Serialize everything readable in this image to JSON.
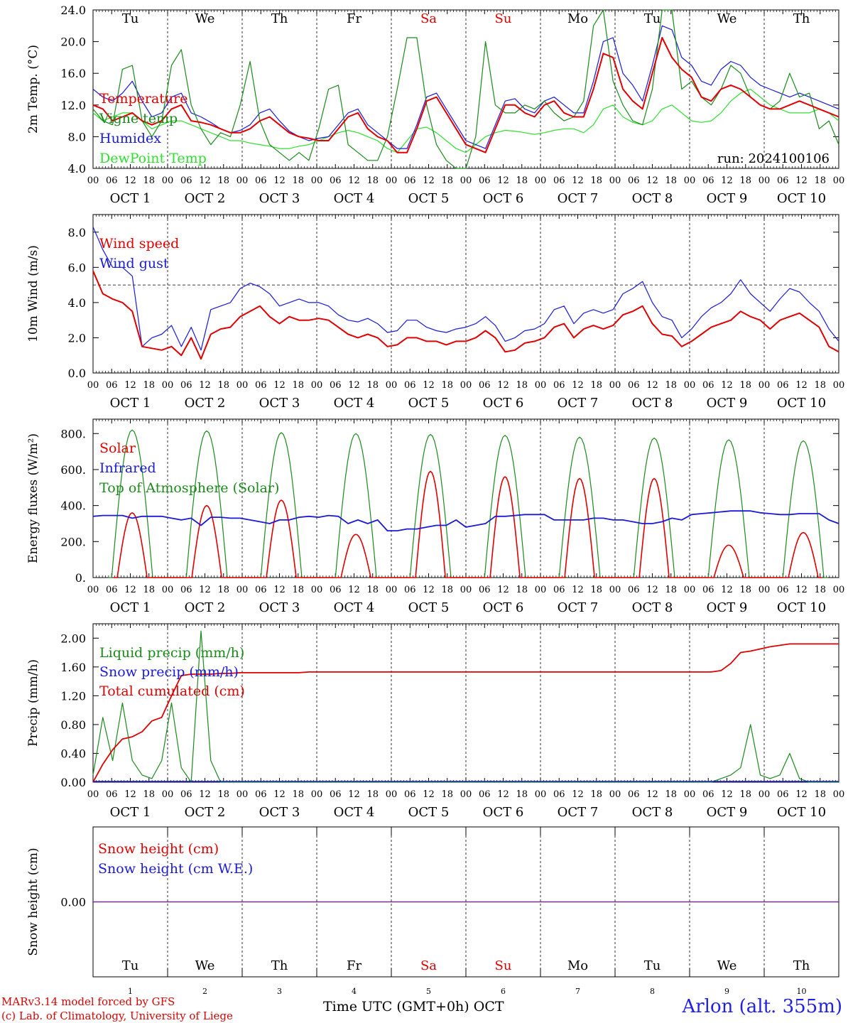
{
  "run_label": "run: 2024100106",
  "station": "Arlon (alt. 355m)",
  "credits": [
    "MARv3.14 model forced by GFS",
    "(c) Lab. of Climatology, University of Liege"
  ],
  "x_axis_title": "Time UTC (GMT+0h)",
  "month_label": "OCT",
  "day_letters": [
    "Tu",
    "We",
    "Th",
    "Fr",
    "Sa",
    "Su",
    "Mo",
    "Tu",
    "We",
    "Th"
  ],
  "day_numbers": [
    "1",
    "2",
    "3",
    "4",
    "5",
    "6",
    "7",
    "8",
    "9",
    "10"
  ],
  "date_labels": [
    "OCT  1",
    "OCT  2",
    "OCT  3",
    "OCT  4",
    "OCT  5",
    "OCT  6",
    "OCT  7",
    "OCT  8",
    "OCT  9",
    "OCT 10"
  ],
  "hour_labels": [
    "00",
    "06",
    "12",
    "18"
  ],
  "colors": {
    "weekday": "#000000",
    "weekend": "#e00000",
    "red": "#e00000",
    "green": "#1a8a1a",
    "blue": "#1a1ad8",
    "lightgreen": "#30e030",
    "purple": "#7a2a9a"
  },
  "chart_data": [
    {
      "type": "line",
      "ylabel": "2m Temp. (°C)",
      "ylim": [
        4.0,
        24.0
      ],
      "yticks": [
        "4.0",
        "8.0",
        "12.0",
        "16.0",
        "20.0",
        "24.0"
      ],
      "x_start": "2024-10-01T00:00Z",
      "x_step_hours": 6,
      "series": [
        {
          "name": "Temperature",
          "color": "red",
          "values": [
            12.0,
            11.5,
            10.0,
            10.5,
            11.0,
            10.0,
            9.5,
            10.0,
            11.5,
            12.0,
            10.0,
            9.8,
            9.5,
            9.0,
            8.5,
            8.5,
            9.0,
            10.0,
            10.5,
            9.5,
            8.5,
            8.0,
            7.8,
            7.5,
            7.5,
            9.0,
            10.5,
            11.0,
            9.0,
            8.0,
            7.5,
            6.0,
            6.0,
            9.0,
            12.5,
            13.0,
            11.0,
            9.0,
            7.0,
            6.5,
            6.0,
            9.0,
            12.0,
            12.0,
            11.0,
            10.5,
            12.0,
            12.5,
            11.0,
            10.5,
            10.5,
            14.0,
            18.5,
            18.0,
            14.0,
            12.5,
            11.5,
            16.0,
            20.5,
            18.0,
            16.5,
            15.5,
            13.0,
            12.5,
            14.0,
            14.5,
            14.0,
            13.0,
            12.0,
            11.5,
            11.5,
            12.0,
            12.5,
            12.0,
            11.5,
            11.0,
            10.5
          ]
        },
        {
          "name": "Vigne temp",
          "color": "green",
          "values": [
            11.5,
            10.0,
            9.5,
            16.5,
            17.0,
            10.0,
            8.0,
            10.0,
            17.0,
            19.0,
            12.0,
            9.0,
            7.0,
            8.5,
            8.0,
            12.0,
            17.5,
            10.0,
            7.0,
            6.0,
            5.0,
            6.0,
            5.0,
            9.0,
            14.0,
            14.5,
            7.0,
            6.0,
            5.0,
            5.0,
            8.0,
            14.0,
            20.5,
            20.5,
            12.0,
            7.0,
            5.0,
            4.0,
            4.0,
            8.0,
            20.0,
            12.0,
            11.0,
            11.0,
            12.0,
            11.5,
            12.5,
            11.0,
            10.0,
            10.5,
            12.5,
            22.0,
            25.0,
            15.0,
            12.0,
            10.0,
            9.5,
            14.0,
            25.0,
            24.0,
            14.0,
            15.0,
            13.0,
            12.0,
            14.0,
            17.0,
            16.0,
            13.0,
            12.0,
            11.5,
            12.5,
            16.0,
            13.0,
            13.5,
            9.0,
            10.0,
            7.0
          ]
        },
        {
          "name": "Humidex",
          "color": "blue",
          "values": [
            14.0,
            13.0,
            12.5,
            13.5,
            15.0,
            12.5,
            10.5,
            11.0,
            13.0,
            13.5,
            11.0,
            10.5,
            9.8,
            9.0,
            8.5,
            8.8,
            9.5,
            11.0,
            11.5,
            10.0,
            8.7,
            8.0,
            7.5,
            7.8,
            8.0,
            9.5,
            11.0,
            11.5,
            9.5,
            8.5,
            7.5,
            6.5,
            6.5,
            9.5,
            13.0,
            13.5,
            11.5,
            9.5,
            7.5,
            7.0,
            6.5,
            9.5,
            12.5,
            12.8,
            11.5,
            11.0,
            12.5,
            13.0,
            12.0,
            11.0,
            11.0,
            15.0,
            20.0,
            20.5,
            16.0,
            14.5,
            12.5,
            17.0,
            22.0,
            21.5,
            18.0,
            17.0,
            15.0,
            14.5,
            16.5,
            17.5,
            17.0,
            15.5,
            14.5,
            14.0,
            13.5,
            13.0,
            13.5,
            13.0,
            12.5,
            12.0,
            11.5
          ]
        },
        {
          "name": "DewPoint Temp",
          "color": "lightgreen",
          "values": [
            11.0,
            10.0,
            10.5,
            11.0,
            11.0,
            10.0,
            9.0,
            9.5,
            10.0,
            10.0,
            9.5,
            9.0,
            8.5,
            8.0,
            7.5,
            7.5,
            7.2,
            7.0,
            6.8,
            6.5,
            6.5,
            6.8,
            7.0,
            7.5,
            8.0,
            8.5,
            8.8,
            8.5,
            8.0,
            7.5,
            6.5,
            6.0,
            7.5,
            9.0,
            9.2,
            8.5,
            7.5,
            6.5,
            6.0,
            7.0,
            8.0,
            8.5,
            8.8,
            8.7,
            8.5,
            8.3,
            8.5,
            8.8,
            9.0,
            9.0,
            8.5,
            9.5,
            11.5,
            12.0,
            10.5,
            9.8,
            9.5,
            10.0,
            11.5,
            12.0,
            11.0,
            10.0,
            9.8,
            10.0,
            11.0,
            12.5,
            13.5,
            14.0,
            13.0,
            12.0,
            11.5,
            11.0,
            11.0,
            11.0,
            11.5,
            11.0,
            10.0
          ]
        }
      ]
    },
    {
      "type": "line",
      "ylabel": "10m Wind (m/s)",
      "ylim": [
        0.0,
        9.0
      ],
      "yticks": [
        "0.0",
        "2.0",
        "4.0",
        "6.0",
        "8.0"
      ],
      "ref_line": 5.0,
      "x_start": "2024-10-01T00:00Z",
      "x_step_hours": 6,
      "series": [
        {
          "name": "Wind speed",
          "color": "red",
          "values": [
            5.8,
            4.5,
            4.2,
            4.0,
            3.5,
            1.5,
            1.4,
            1.3,
            1.5,
            1.0,
            2.0,
            0.8,
            2.2,
            2.5,
            2.6,
            3.2,
            3.5,
            3.8,
            3.2,
            2.8,
            3.2,
            3.0,
            3.0,
            3.1,
            3.0,
            2.6,
            2.2,
            2.0,
            2.2,
            2.0,
            1.5,
            1.6,
            2.0,
            2.0,
            1.8,
            1.8,
            1.6,
            1.8,
            1.8,
            2.0,
            2.4,
            2.0,
            1.2,
            1.3,
            1.7,
            1.8,
            2.0,
            2.6,
            2.8,
            2.0,
            2.5,
            2.7,
            2.5,
            2.7,
            3.3,
            3.5,
            3.8,
            2.8,
            2.2,
            2.1,
            1.5,
            1.8,
            2.2,
            2.6,
            2.8,
            3.0,
            3.5,
            3.2,
            3.0,
            2.5,
            3.0,
            3.2,
            3.4,
            3.0,
            2.6,
            1.5,
            1.2
          ]
        },
        {
          "name": "Wind gust",
          "color": "blue",
          "values": [
            8.3,
            7.0,
            6.0,
            6.0,
            5.5,
            1.5,
            2.0,
            2.2,
            2.7,
            1.5,
            2.6,
            1.3,
            3.6,
            3.8,
            4.0,
            4.8,
            5.1,
            4.9,
            4.5,
            3.8,
            4.0,
            4.2,
            4.0,
            4.0,
            3.8,
            3.3,
            3.0,
            2.9,
            3.1,
            2.8,
            2.3,
            2.4,
            3.0,
            3.0,
            2.6,
            2.4,
            2.3,
            2.5,
            2.6,
            2.8,
            3.2,
            2.7,
            1.8,
            2.0,
            2.4,
            2.5,
            2.8,
            3.6,
            3.8,
            2.8,
            3.4,
            3.6,
            3.4,
            3.6,
            4.5,
            4.8,
            5.2,
            4.0,
            3.2,
            3.0,
            2.0,
            2.5,
            3.2,
            3.7,
            4.0,
            4.5,
            5.3,
            4.5,
            4.0,
            3.5,
            4.2,
            4.8,
            4.6,
            4.0,
            3.5,
            2.5,
            1.8
          ]
        }
      ]
    },
    {
      "type": "line",
      "ylabel": "Energy fluxes (W/m²)",
      "ylim": [
        0,
        880
      ],
      "yticks": [
        "0.",
        "200.",
        "400.",
        "600.",
        "800."
      ],
      "x_start": "2024-10-01T00:00Z",
      "x_step_hours": 6,
      "series": [
        {
          "name": "Solar",
          "color": "red",
          "peak_values": [
            360,
            400,
            430,
            240,
            590,
            560,
            550,
            550,
            180,
            250
          ]
        },
        {
          "name": "Infrared",
          "color": "blue",
          "values": [
            340,
            345,
            345,
            345,
            330,
            340,
            340,
            340,
            330,
            320,
            330,
            290,
            335,
            335,
            330,
            330,
            320,
            310,
            300,
            320,
            320,
            335,
            340,
            335,
            345,
            340,
            300,
            320,
            300,
            320,
            260,
            260,
            270,
            270,
            280,
            290,
            290,
            320,
            280,
            290,
            300,
            340,
            340,
            345,
            350,
            350,
            350,
            320,
            320,
            320,
            320,
            330,
            330,
            320,
            320,
            310,
            300,
            300,
            310,
            330,
            320,
            350,
            355,
            360,
            365,
            370,
            370,
            370,
            360,
            355,
            350,
            350,
            355,
            355,
            355,
            320,
            300
          ]
        },
        {
          "name": "Top of Atmosphere (Solar)",
          "color": "green",
          "peak_values": [
            820,
            815,
            805,
            800,
            795,
            790,
            780,
            775,
            765,
            760
          ]
        }
      ]
    },
    {
      "type": "line",
      "ylabel": "Precip (mm/h)",
      "ylim": [
        0.0,
        2.2
      ],
      "yticks": [
        "0.00",
        "0.40",
        "0.80",
        "1.20",
        "1.60",
        "2.00"
      ],
      "x_start": "2024-10-01T00:00Z",
      "x_step_hours": 6,
      "series": [
        {
          "name": "Liquid precip (mm/h)",
          "color": "green",
          "values": [
            0.1,
            0.9,
            0.3,
            1.1,
            0.3,
            0.1,
            0.05,
            0.3,
            1.1,
            0.2,
            0.0,
            2.1,
            0.3,
            0.0,
            0.0,
            0.0,
            0.0,
            0.0,
            0.0,
            0.0,
            0.0,
            0.0,
            0.0,
            0.0,
            0.0,
            0.0,
            0.0,
            0.0,
            0.0,
            0.0,
            0.0,
            0.0,
            0.0,
            0.0,
            0.0,
            0.0,
            0.0,
            0.0,
            0.0,
            0.0,
            0.0,
            0.0,
            0.0,
            0.0,
            0.0,
            0.0,
            0.0,
            0.0,
            0.0,
            0.0,
            0.0,
            0.0,
            0.0,
            0.0,
            0.0,
            0.0,
            0.0,
            0.0,
            0.0,
            0.0,
            0.0,
            0.0,
            0.0,
            0.0,
            0.05,
            0.1,
            0.2,
            0.8,
            0.1,
            0.05,
            0.1,
            0.4,
            0.05,
            0.0,
            0.0,
            0.0,
            0.0
          ]
        },
        {
          "name": "Snow precip (mm/h)",
          "color": "blue",
          "values": [
            0,
            0,
            0,
            0,
            0,
            0,
            0,
            0,
            0,
            0
          ]
        },
        {
          "name": "Total cumulated (cm)",
          "color": "red",
          "values": [
            0.0,
            0.25,
            0.45,
            0.6,
            0.63,
            0.7,
            0.85,
            0.9,
            1.2,
            1.48,
            1.5,
            1.5,
            1.5,
            1.51,
            1.51,
            1.52,
            1.52,
            1.52,
            1.52,
            1.52,
            1.52,
            1.52,
            1.53,
            1.53,
            1.53,
            1.53,
            1.53,
            1.53,
            1.53,
            1.53,
            1.53,
            1.53,
            1.53,
            1.53,
            1.53,
            1.53,
            1.53,
            1.53,
            1.53,
            1.53,
            1.53,
            1.53,
            1.53,
            1.53,
            1.53,
            1.53,
            1.53,
            1.53,
            1.53,
            1.53,
            1.53,
            1.53,
            1.53,
            1.53,
            1.53,
            1.53,
            1.53,
            1.53,
            1.53,
            1.53,
            1.53,
            1.53,
            1.53,
            1.53,
            1.55,
            1.65,
            1.8,
            1.82,
            1.85,
            1.88,
            1.9,
            1.92,
            1.92,
            1.92,
            1.92,
            1.92,
            1.92
          ]
        }
      ]
    },
    {
      "type": "line",
      "ylabel": "Snow height (cm)",
      "ylim": [
        -1,
        1
      ],
      "yticks": [
        "0.00"
      ],
      "x_start": "2024-10-01T00:00Z",
      "x_step_hours": 6,
      "series": [
        {
          "name": "Snow height (cm)",
          "color": "red",
          "values": [
            0,
            0,
            0,
            0,
            0,
            0,
            0,
            0,
            0,
            0
          ]
        },
        {
          "name": "Snow height (cm W.E.)",
          "color": "blue",
          "values": [
            0,
            0,
            0,
            0,
            0,
            0,
            0,
            0,
            0,
            0
          ]
        }
      ]
    }
  ]
}
